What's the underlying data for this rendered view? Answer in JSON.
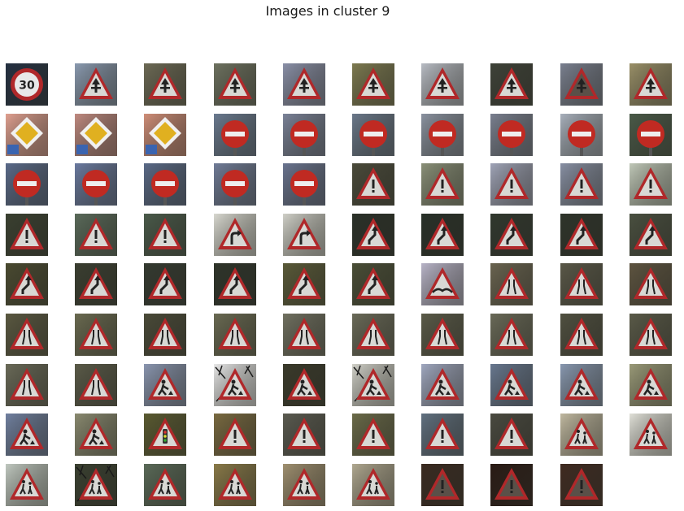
{
  "title": "Images in cluster 9",
  "grid": {
    "rows": 9,
    "columns": 10,
    "tile_count": 89
  },
  "tiles": [
    {
      "sign": "speed-limit",
      "speed": "30",
      "bg": "#243042"
    },
    {
      "sign": "priority-road-ahead",
      "bg": "#8a9ab0"
    },
    {
      "sign": "priority-road-ahead",
      "bg": "#6d6a55"
    },
    {
      "sign": "priority-road-ahead",
      "bg": "#6e7260"
    },
    {
      "sign": "priority-road-ahead",
      "bg": "#8a90a8"
    },
    {
      "sign": "priority-road-ahead",
      "bg": "#7d7a50"
    },
    {
      "sign": "priority-road-ahead",
      "bg": "#b8bcc4"
    },
    {
      "sign": "priority-road-ahead",
      "bg": "#3e4238"
    },
    {
      "sign": "priority-road-ahead",
      "bg": "#7a8090",
      "dark": true
    },
    {
      "sign": "priority-road-ahead",
      "bg": "#9a9068"
    },
    {
      "sign": "priority-road",
      "bg": "#e0a090"
    },
    {
      "sign": "priority-road",
      "bg": "#c08a80"
    },
    {
      "sign": "priority-road",
      "bg": "#d08e78"
    },
    {
      "sign": "no-entry",
      "bg": "#6a7a90"
    },
    {
      "sign": "no-entry",
      "bg": "#7a8298"
    },
    {
      "sign": "no-entry",
      "bg": "#6a788a"
    },
    {
      "sign": "no-entry",
      "bg": "#8a92a0"
    },
    {
      "sign": "no-entry",
      "bg": "#7a8090"
    },
    {
      "sign": "no-entry",
      "bg": "#a8b0bc"
    },
    {
      "sign": "no-entry",
      "bg": "#4a5a48"
    },
    {
      "sign": "no-entry",
      "bg": "#5a6a8a"
    },
    {
      "sign": "no-entry",
      "bg": "#6a7aa0"
    },
    {
      "sign": "no-entry",
      "bg": "#5a6a88"
    },
    {
      "sign": "no-entry",
      "bg": "#707c98"
    },
    {
      "sign": "no-entry",
      "bg": "#6a7490"
    },
    {
      "sign": "general-caution",
      "bg": "#4a4a3a"
    },
    {
      "sign": "general-caution",
      "bg": "#8a9078"
    },
    {
      "sign": "general-caution",
      "bg": "#a0a4b8"
    },
    {
      "sign": "general-caution",
      "bg": "#8890a4"
    },
    {
      "sign": "general-caution",
      "bg": "#c0c8b8"
    },
    {
      "sign": "general-caution",
      "bg": "#3a4030"
    },
    {
      "sign": "general-caution",
      "bg": "#5a6a5a"
    },
    {
      "sign": "general-caution",
      "bg": "#4a5a4a"
    },
    {
      "sign": "curve-right",
      "bg": "#d8d8d0"
    },
    {
      "sign": "curve-right",
      "bg": "#d0d0c8"
    },
    {
      "sign": "double-curve",
      "bg": "#2a3028"
    },
    {
      "sign": "double-curve",
      "bg": "#283028"
    },
    {
      "sign": "double-curve",
      "bg": "#30382e"
    },
    {
      "sign": "double-curve",
      "bg": "#2e342a"
    },
    {
      "sign": "double-curve",
      "bg": "#4a5040"
    },
    {
      "sign": "double-curve",
      "bg": "#4a4a30"
    },
    {
      "sign": "double-curve",
      "bg": "#3a3e30"
    },
    {
      "sign": "double-curve",
      "bg": "#343a30"
    },
    {
      "sign": "double-curve",
      "bg": "#2e342a"
    },
    {
      "sign": "double-curve",
      "bg": "#5a5a38"
    },
    {
      "sign": "double-curve",
      "bg": "#4a4e36"
    },
    {
      "sign": "bumpy-road",
      "bg": "#b8b4c8"
    },
    {
      "sign": "road-narrows",
      "bg": "#6a6450"
    },
    {
      "sign": "road-narrows",
      "bg": "#5a5848"
    },
    {
      "sign": "road-narrows",
      "bg": "#5e5440"
    },
    {
      "sign": "road-narrows",
      "bg": "#5a5840"
    },
    {
      "sign": "road-narrows",
      "bg": "#6a6a50"
    },
    {
      "sign": "road-narrows",
      "bg": "#4a4a38"
    },
    {
      "sign": "road-narrows",
      "bg": "#6a6a52"
    },
    {
      "sign": "road-narrows",
      "bg": "#707060"
    },
    {
      "sign": "road-narrows",
      "bg": "#6a6a58"
    },
    {
      "sign": "road-narrows",
      "bg": "#5a5a48"
    },
    {
      "sign": "road-narrows",
      "bg": "#6a6a58"
    },
    {
      "sign": "road-narrows",
      "bg": "#505040"
    },
    {
      "sign": "road-narrows",
      "bg": "#5a5a48"
    },
    {
      "sign": "road-narrows",
      "bg": "#6a6a58"
    },
    {
      "sign": "road-narrows",
      "bg": "#5a5a48"
    },
    {
      "sign": "road-work",
      "bg": "#8a96b0"
    },
    {
      "sign": "road-work",
      "bg": "#e8e8e8",
      "branches": true
    },
    {
      "sign": "road-work",
      "bg": "#3a3a2a"
    },
    {
      "sign": "road-work",
      "bg": "#d0d0c8",
      "branches": true
    },
    {
      "sign": "road-work",
      "bg": "#a0a8c0"
    },
    {
      "sign": "road-work",
      "bg": "#687890"
    },
    {
      "sign": "road-work",
      "bg": "#8898b0"
    },
    {
      "sign": "road-work",
      "bg": "#9a9a78"
    },
    {
      "sign": "road-work",
      "bg": "#7080a0"
    },
    {
      "sign": "road-work",
      "bg": "#8a8a70"
    },
    {
      "sign": "traffic-signals",
      "bg": "#5a5a30"
    },
    {
      "sign": "general-caution",
      "bg": "#7a6a40"
    },
    {
      "sign": "general-caution",
      "bg": "#5a5a50"
    },
    {
      "sign": "general-caution",
      "bg": "#6a6a48"
    },
    {
      "sign": "general-caution",
      "bg": "#607080"
    },
    {
      "sign": "general-caution",
      "bg": "#4a4a40"
    },
    {
      "sign": "children-crossing",
      "bg": "#c0b8a0"
    },
    {
      "sign": "children-crossing",
      "bg": "#e0e0d8"
    },
    {
      "sign": "children-crossing",
      "bg": "#c0c8c0"
    },
    {
      "sign": "children-crossing",
      "bg": "#3a4030",
      "branches": true
    },
    {
      "sign": "children-crossing",
      "bg": "#5a6a58"
    },
    {
      "sign": "children-crossing",
      "bg": "#8a7a48"
    },
    {
      "sign": "children-crossing",
      "bg": "#a09070"
    },
    {
      "sign": "children-crossing",
      "bg": "#b0a890"
    },
    {
      "sign": "general-caution",
      "bg": "#3a2a20",
      "dark": true
    },
    {
      "sign": "general-caution",
      "bg": "#2a1a14",
      "dark": true
    },
    {
      "sign": "general-caution",
      "bg": "#402a20",
      "dark": true
    }
  ]
}
